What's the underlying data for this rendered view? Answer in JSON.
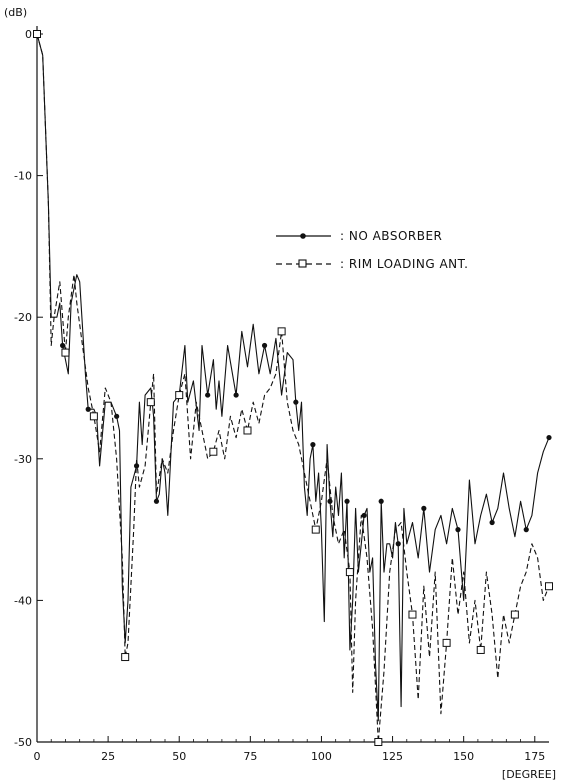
{
  "chart_data": {
    "type": "line",
    "ylabel": "(dB)",
    "xlabel": "[DEGREE]",
    "xlim": [
      0,
      180
    ],
    "ylim": [
      -50,
      0
    ],
    "x_ticks": [
      0,
      25,
      50,
      75,
      100,
      125,
      150,
      175
    ],
    "y_ticks": [
      0,
      -10,
      -20,
      -30,
      -40,
      -50
    ],
    "grid": false,
    "legend_position": "upper-right",
    "series": [
      {
        "name": ": NO ABSORBER",
        "style": "solid-dot",
        "color": "#111111",
        "x": [
          0,
          2,
          4,
          5,
          7,
          8,
          9,
          11,
          12,
          14,
          15,
          17,
          18,
          20,
          21,
          22,
          24,
          26,
          28,
          29,
          30,
          31,
          32,
          33,
          35,
          36,
          37,
          38,
          40,
          41,
          42,
          43,
          44,
          45,
          46,
          48,
          50,
          52,
          53,
          55,
          57,
          58,
          60,
          62,
          63,
          64,
          65,
          67,
          70,
          72,
          74,
          75,
          76,
          78,
          80,
          82,
          84,
          86,
          88,
          90,
          91,
          92,
          93,
          94,
          95,
          96,
          97,
          98,
          99,
          100,
          101,
          102,
          103,
          104,
          105,
          106,
          107,
          108,
          109,
          110,
          111,
          112,
          113,
          114,
          115,
          116,
          117,
          118,
          119,
          120,
          121,
          122,
          123,
          124,
          125,
          126,
          127,
          128,
          129,
          130,
          132,
          134,
          136,
          138,
          140,
          142,
          144,
          146,
          148,
          150,
          152,
          154,
          156,
          158,
          160,
          162,
          164,
          166,
          168,
          170,
          172,
          174,
          176,
          178,
          180
        ],
        "y": [
          0,
          -1.5,
          -12,
          -20,
          -20,
          -19,
          -22,
          -24,
          -19,
          -17,
          -17.5,
          -24,
          -26.5,
          -26.5,
          -27,
          -30.5,
          -26,
          -26,
          -27,
          -28,
          -39,
          -43,
          -40,
          -32,
          -30.5,
          -26,
          -29,
          -25.5,
          -25,
          -27,
          -33,
          -32.5,
          -30,
          -31,
          -34,
          -26,
          -25.5,
          -22,
          -26,
          -24.5,
          -28,
          -22,
          -25.5,
          -23,
          -26.5,
          -24.5,
          -27,
          -22,
          -25.5,
          -21,
          -23.5,
          -22,
          -20.5,
          -24,
          -22,
          -24,
          -21.5,
          -25.5,
          -22.5,
          -23,
          -26,
          -28,
          -26,
          -32,
          -34,
          -30,
          -29,
          -33,
          -31,
          -35,
          -41.5,
          -29,
          -33,
          -35.5,
          -32,
          -34,
          -31,
          -37,
          -33,
          -43.5,
          -40,
          -33.5,
          -38,
          -36,
          -34,
          -33.5,
          -38,
          -37,
          -44.5,
          -48.5,
          -33,
          -38,
          -36,
          -36,
          -37,
          -34.5,
          -36,
          -47.5,
          -33.5,
          -36,
          -34.5,
          -37,
          -33.5,
          -38,
          -35,
          -34,
          -36,
          -33.5,
          -35,
          -40,
          -31.5,
          -36,
          -34,
          -32.5,
          -34.5,
          -33.5,
          -31,
          -33.5,
          -35.5,
          -33,
          -35,
          -34,
          -31,
          -29.5,
          -28.5
        ]
      },
      {
        "name": ": RIM LOADING ANT.",
        "style": "dashed-square",
        "color": "#111111",
        "x": [
          0,
          2,
          4,
          5,
          6,
          8,
          10,
          11,
          13,
          14,
          16,
          18,
          20,
          22,
          24,
          26,
          28,
          30,
          31,
          32,
          34,
          35,
          36,
          38,
          40,
          41,
          42,
          44,
          46,
          48,
          50,
          52,
          54,
          56,
          58,
          60,
          62,
          64,
          66,
          68,
          70,
          72,
          74,
          76,
          78,
          80,
          82,
          84,
          86,
          88,
          90,
          92,
          94,
          96,
          98,
          100,
          102,
          104,
          106,
          108,
          110,
          111,
          112,
          114,
          116,
          118,
          120,
          122,
          124,
          126,
          128,
          130,
          132,
          134,
          136,
          138,
          140,
          142,
          144,
          146,
          148,
          150,
          152,
          154,
          156,
          158,
          160,
          162,
          164,
          166,
          168,
          170,
          172,
          174,
          176,
          178,
          180
        ],
        "y": [
          0,
          -1.5,
          -12,
          -22,
          -20,
          -17.5,
          -22.5,
          -20,
          -17,
          -19,
          -22,
          -25,
          -27,
          -29.5,
          -25,
          -26,
          -30,
          -37,
          -44,
          -43,
          -35,
          -30,
          -32,
          -30.5,
          -26,
          -24,
          -32.5,
          -30,
          -31,
          -28,
          -25.5,
          -24,
          -30,
          -26,
          -28,
          -30,
          -29.5,
          -28,
          -30,
          -27,
          -28.5,
          -26.5,
          -28,
          -26,
          -27.5,
          -25.5,
          -25,
          -24,
          -21,
          -26,
          -28,
          -29,
          -31,
          -33,
          -35,
          -33,
          -30,
          -34,
          -36,
          -35,
          -38,
          -46.5,
          -40,
          -34,
          -37,
          -42,
          -50,
          -45,
          -38,
          -35,
          -34.5,
          -38,
          -41,
          -47,
          -39,
          -44,
          -38,
          -48,
          -43,
          -37,
          -41,
          -38,
          -43,
          -40,
          -43.5,
          -38,
          -41,
          -45.5,
          -41,
          -43,
          -41,
          -39,
          -38,
          -36,
          -37,
          -40,
          -39
        ]
      }
    ]
  }
}
